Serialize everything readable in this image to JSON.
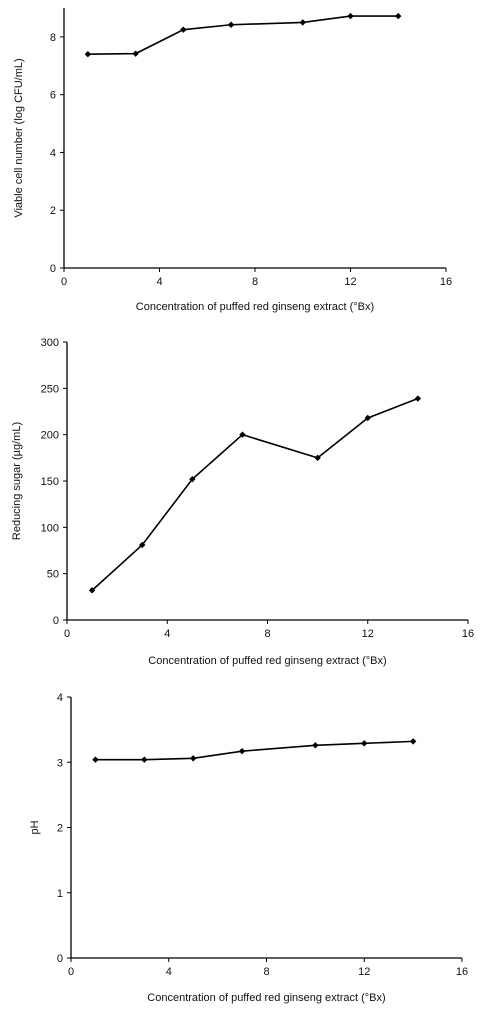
{
  "chart_data": [
    {
      "type": "line",
      "xlabel": "Concentration of puffed red ginseng extract (°Bx)",
      "ylabel": "Viable cell number (log CFU/mL)",
      "xlim": [
        0,
        16
      ],
      "ylim": [
        0,
        9
      ],
      "x_ticks": [
        "0",
        "4",
        "8",
        "12",
        "16"
      ],
      "y_ticks": [
        "0",
        "2",
        "4",
        "6",
        "8"
      ],
      "grid": false,
      "x": [
        1,
        3,
        5,
        7,
        10,
        12,
        14
      ],
      "values": [
        7.4,
        7.42,
        8.25,
        8.42,
        8.5,
        8.72,
        8.72
      ]
    },
    {
      "type": "line",
      "xlabel": "Concentration of puffed red ginseng extract (°Bx)",
      "ylabel": "Reducing sugar (µg/mL)",
      "xlim": [
        0,
        16
      ],
      "ylim": [
        0,
        300
      ],
      "x_ticks": [
        "0",
        "4",
        "8",
        "12",
        "16"
      ],
      "y_ticks": [
        "0",
        "50",
        "100",
        "150",
        "200",
        "250",
        "300"
      ],
      "grid": false,
      "x": [
        1,
        3,
        5,
        7,
        10,
        12,
        14
      ],
      "values": [
        32,
        81,
        152,
        200,
        175,
        218,
        239
      ]
    },
    {
      "type": "line",
      "xlabel": "Concentration of puffed red ginseng extract (°Bx)",
      "ylabel": "pH",
      "xlim": [
        0,
        16
      ],
      "ylim": [
        0,
        4
      ],
      "x_ticks": [
        "0",
        "4",
        "8",
        "12",
        "16"
      ],
      "y_ticks": [
        "0",
        "1",
        "2",
        "3",
        "4"
      ],
      "grid": false,
      "x": [
        1,
        3,
        5,
        7,
        10,
        12,
        14
      ],
      "values": [
        3.04,
        3.04,
        3.06,
        3.17,
        3.26,
        3.29,
        3.32
      ]
    }
  ]
}
